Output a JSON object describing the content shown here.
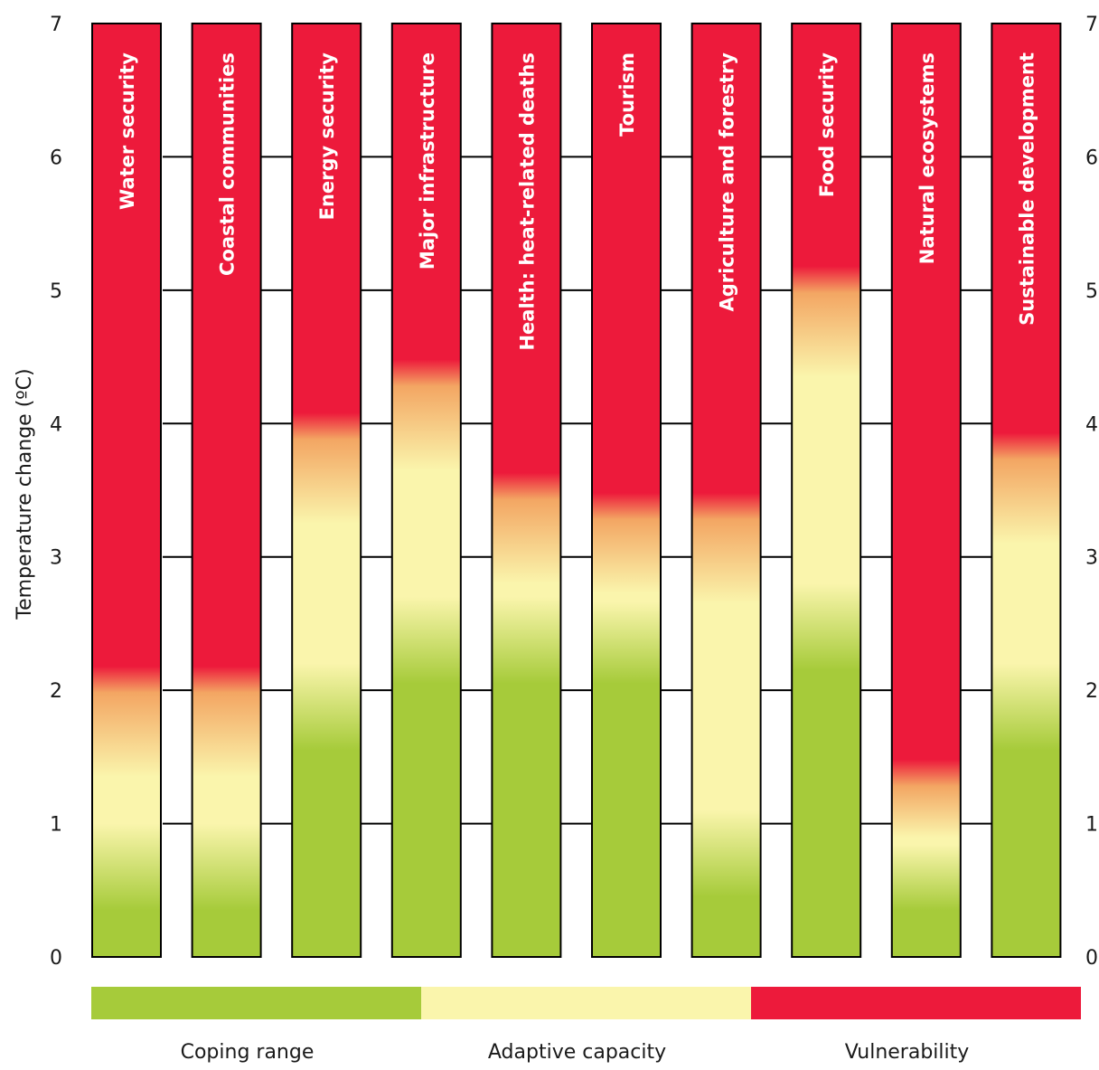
{
  "chart_data": {
    "type": "bar",
    "orientation": "vertical-stacked-gradient",
    "ylabel": "Temperature change (ºC)",
    "ylim": [
      0,
      7
    ],
    "y_ticks": [
      0,
      1,
      2,
      3,
      4,
      5,
      6,
      7
    ],
    "right_axis_ticks": true,
    "grid": true,
    "categories": [
      "Water security",
      "Coastal communities",
      "Energy security",
      "Major infrastructure",
      "Health: heat-related deaths",
      "Tourism",
      "Agriculture and forestry",
      "Food security",
      "Natural ecosystems",
      "Sustainable development"
    ],
    "series": [
      {
        "name": "Coping range",
        "values": [
          0.4,
          0.4,
          1.6,
          2.1,
          2.1,
          2.1,
          0.5,
          2.2,
          0.4,
          1.6
        ]
      },
      {
        "name": "Adaptive capacity",
        "values": [
          2.2,
          2.2,
          4.1,
          4.5,
          3.65,
          3.5,
          3.5,
          5.2,
          1.5,
          3.95
        ]
      },
      {
        "name": "Vulnerability",
        "values": [
          7,
          7,
          7,
          7,
          7,
          7,
          7,
          7,
          7,
          7
        ]
      }
    ],
    "colors": {
      "coping": "#a6cb3a",
      "adaptive": "#faf5ac",
      "orange": "#f3a663",
      "vulnerability": "#ed1a3b"
    },
    "legend": {
      "placement": "bottom",
      "items": [
        {
          "label": "Coping range",
          "color": "#a6cb3a"
        },
        {
          "label": "Adaptive capacity",
          "color": "#faf5ac"
        },
        {
          "label": "Vulnerability",
          "color": "#ed1a3b"
        }
      ]
    }
  }
}
